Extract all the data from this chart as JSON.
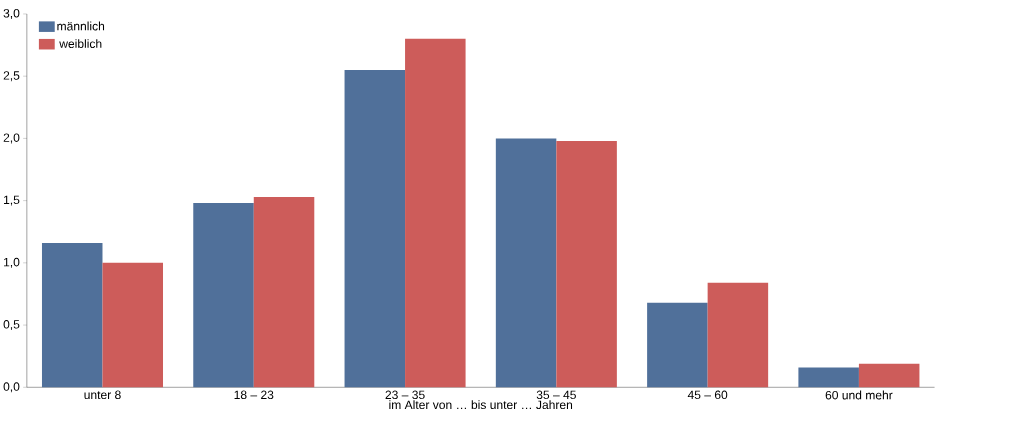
{
  "chart_data": {
    "type": "bar",
    "xlabel": "im Alter von … bis unter … Jahren",
    "categories": [
      "unter 8",
      "18 – 23",
      "23 – 35",
      "35 – 45",
      "45 – 60",
      "60 und mehr"
    ],
    "series": [
      {
        "name": "männlich",
        "color": "#50709a",
        "values": [
          1.16,
          1.48,
          2.55,
          2.0,
          0.68,
          0.16
        ]
      },
      {
        "name": "weiblich",
        "color": "#cd5c5a",
        "values": [
          1.0,
          1.53,
          2.8,
          1.98,
          0.84,
          0.19
        ]
      }
    ],
    "ylim": [
      0,
      3
    ],
    "yticks": [
      {
        "value": 0,
        "label": "0,0"
      },
      {
        "value": 0.5,
        "label": "0,5"
      },
      {
        "value": 1,
        "label": "1,0"
      },
      {
        "value": 1.5,
        "label": "1,5"
      },
      {
        "value": 2,
        "label": "2,0"
      },
      {
        "value": 2.5,
        "label": "2,5"
      },
      {
        "value": 3,
        "label": "3,0"
      }
    ],
    "legend": "top left",
    "grid": false
  }
}
